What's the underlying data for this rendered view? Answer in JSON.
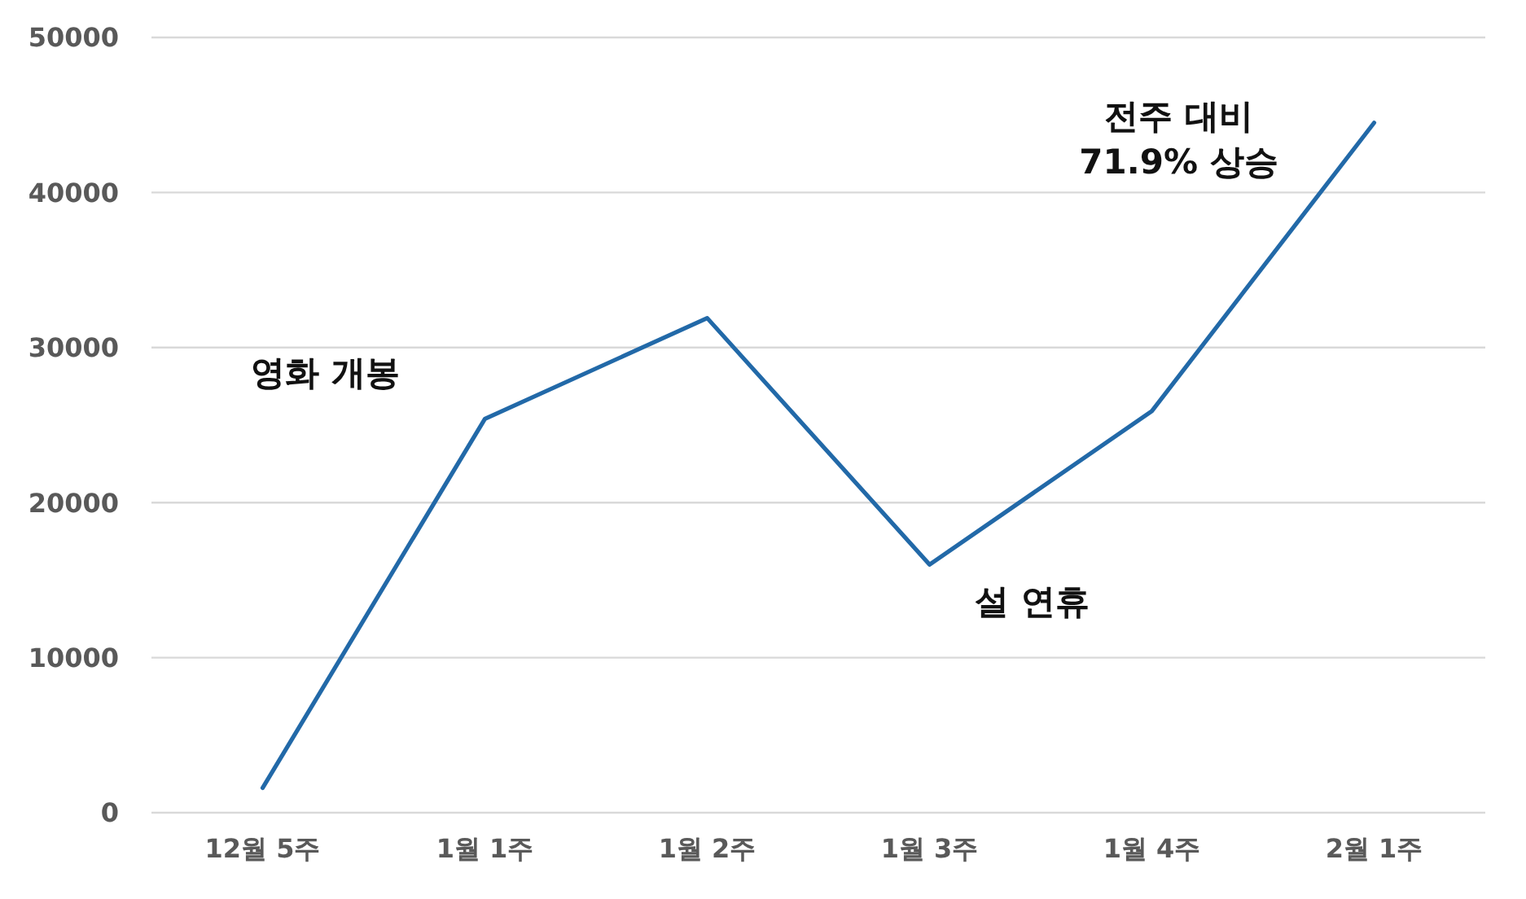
{
  "chart_data": {
    "type": "line",
    "categories": [
      "12월 5주",
      "1월 1주",
      "1월 2주",
      "1월 3주",
      "1월 4주",
      "2월 1주"
    ],
    "series": [
      {
        "color": "#2269a8",
        "values": [
          1600,
          25400,
          31900,
          16000,
          25900,
          44500
        ]
      }
    ],
    "ylim": [
      0,
      50000
    ],
    "yticks": [
      0,
      10000,
      20000,
      30000,
      40000,
      50000
    ],
    "grid": "y",
    "marker": "none",
    "line_style": "solid",
    "annotations": [
      {
        "text": "영화 개봉",
        "x": "1월 1주",
        "y": 25400
      },
      {
        "text": "설 연휴",
        "x": "1월 3주",
        "y": 16000
      },
      {
        "text": "전주 대비\n71.9% 상승",
        "x": "2월 1주",
        "y": 44500
      }
    ]
  }
}
